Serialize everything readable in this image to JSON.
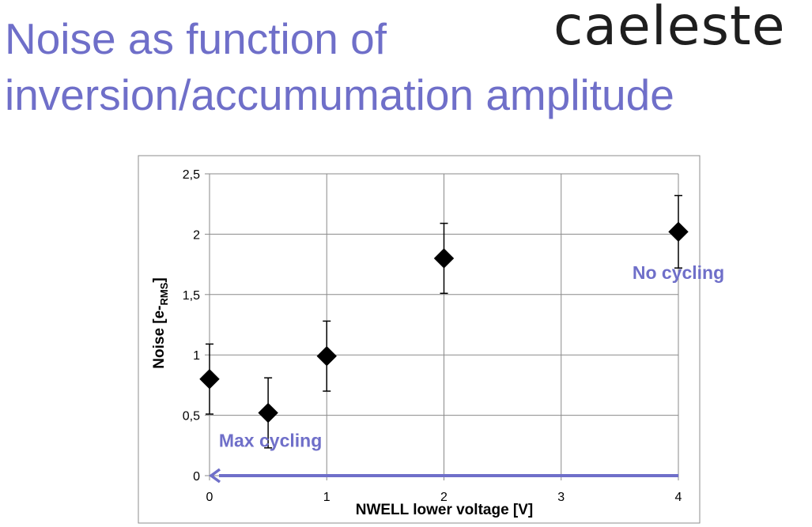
{
  "slide": {
    "title_line1": "Noise as function of",
    "title_line2": "inversion/accumumation amplitude",
    "logo_text": "caeleste",
    "title_color": "#6f6fc9",
    "annotation_color": "#6f6fc9"
  },
  "chart_data": {
    "type": "scatter",
    "title": "",
    "xlabel": "NWELL lower voltage [V]",
    "ylabel": {
      "main": "Noise [e-",
      "subscript": "RMS",
      "close": "]"
    },
    "xlim": [
      0,
      4
    ],
    "ylim": [
      0,
      2.5
    ],
    "x_ticks": [
      {
        "v": 0,
        "label": "0"
      },
      {
        "v": 1,
        "label": "1"
      },
      {
        "v": 2,
        "label": "2"
      },
      {
        "v": 3,
        "label": "3"
      },
      {
        "v": 4,
        "label": "4"
      }
    ],
    "y_ticks": [
      {
        "v": 0,
        "label": "0"
      },
      {
        "v": 0.5,
        "label": "0,5"
      },
      {
        "v": 1,
        "label": "1"
      },
      {
        "v": 1.5,
        "label": "1,5"
      },
      {
        "v": 2,
        "label": "2"
      },
      {
        "v": 2.5,
        "label": "2,5"
      }
    ],
    "grid": true,
    "legend": "none",
    "marker": "diamond",
    "series": [
      {
        "points": [
          {
            "x": 0,
            "y": 0.8,
            "err": 0.29
          },
          {
            "x": 0.5,
            "y": 0.52,
            "err": 0.29
          },
          {
            "x": 1,
            "y": 0.99,
            "err": 0.29
          },
          {
            "x": 2,
            "y": 1.8,
            "err": 0.29
          },
          {
            "x": 4,
            "y": 2.02,
            "err": 0.3
          }
        ]
      }
    ],
    "annotations": [
      {
        "text": "No cycling",
        "x": 4,
        "y": 1.63,
        "anchor": "middle"
      },
      {
        "text": "Max cycling",
        "x": 0.08,
        "y": 0.24,
        "anchor": "start"
      }
    ],
    "arrow": {
      "from": {
        "x": 4,
        "y": 0
      },
      "to": {
        "x": 0,
        "y": 0
      }
    }
  }
}
